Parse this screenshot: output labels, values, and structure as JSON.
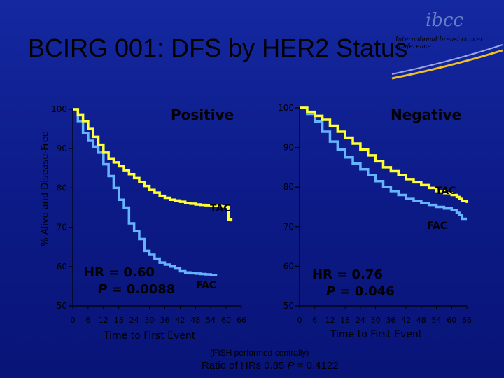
{
  "slide": {
    "title": "BCIRG 001: DFS by HER2 Status",
    "logo_text": "ibcc",
    "logo_subtitle": "International breast cancer conference",
    "y_axis_label": "% Alive and Disease-Free",
    "fish_note": "(FISH performed centrally)",
    "ratio_prefix": "Ratio of HRs 0.85 ",
    "ratio_p_label": "P",
    "ratio_suffix": " = 0.4122"
  },
  "chart_data": [
    {
      "type": "line",
      "title": "Positive",
      "xlabel": "Time to First Event",
      "ylabel": "% Alive and Disease-Free",
      "xlim": [
        0,
        66
      ],
      "ylim": [
        50,
        100
      ],
      "x_ticks": [
        "0",
        "6",
        "12",
        "18",
        "24",
        "30",
        "36",
        "42",
        "48",
        "54",
        "60",
        "66"
      ],
      "y_ticks": [
        "50",
        "60",
        "70",
        "80",
        "90",
        "100"
      ],
      "hr_line": "HR = 0.60",
      "p_label": "P",
      "p_value": " = 0.0088",
      "series": [
        {
          "name": "TAC",
          "color": "#ffff33",
          "x": [
            0,
            2,
            4,
            6,
            8,
            10,
            12,
            14,
            16,
            18,
            20,
            22,
            24,
            26,
            28,
            30,
            32,
            34,
            36,
            38,
            40,
            42,
            44,
            46,
            48,
            50,
            52,
            54,
            56,
            58,
            60,
            61,
            62
          ],
          "y": [
            100,
            98.5,
            97,
            95,
            93,
            91,
            89,
            87.5,
            86.5,
            85.5,
            84.5,
            83.5,
            82.5,
            81.5,
            80.5,
            79.5,
            78.8,
            78,
            77.5,
            77,
            76.8,
            76.5,
            76.2,
            76,
            75.8,
            75.7,
            75.6,
            75.5,
            75.4,
            75.3,
            75.2,
            72,
            71.5
          ]
        },
        {
          "name": "FAC",
          "color": "#66b3ff",
          "x": [
            0,
            2,
            4,
            6,
            8,
            10,
            12,
            14,
            16,
            18,
            20,
            22,
            24,
            26,
            28,
            30,
            32,
            34,
            36,
            38,
            40,
            42,
            44,
            46,
            48,
            50,
            52,
            54,
            56
          ],
          "y": [
            100,
            97,
            94,
            92,
            90.5,
            89,
            86,
            83,
            80,
            77,
            75,
            71,
            69,
            67,
            64,
            63,
            62,
            61,
            60.5,
            60,
            59.5,
            58.8,
            58.5,
            58.3,
            58.2,
            58.1,
            58,
            57.8,
            57.6
          ]
        }
      ]
    },
    {
      "type": "line",
      "title": "Negative",
      "xlabel": "Time to First Event",
      "xlim": [
        0,
        66
      ],
      "ylim": [
        50,
        100
      ],
      "x_ticks": [
        "0",
        "6",
        "12",
        "18",
        "24",
        "30",
        "36",
        "42",
        "48",
        "54",
        "60",
        "66"
      ],
      "y_ticks": [
        "50",
        "60",
        "70",
        "80",
        "90",
        "100"
      ],
      "hr_line": "HR = 0.76",
      "p_label": "P",
      "p_value": " = 0.046",
      "series": [
        {
          "name": "TAC",
          "color": "#ffff33",
          "x": [
            0,
            3,
            6,
            9,
            12,
            15,
            18,
            21,
            24,
            27,
            30,
            33,
            36,
            39,
            42,
            45,
            48,
            51,
            54,
            57,
            60,
            62,
            63,
            64,
            66
          ],
          "y": [
            100,
            99,
            98,
            97,
            95.5,
            94,
            92.5,
            91,
            89.5,
            88,
            86.5,
            85,
            84,
            83,
            82,
            81.2,
            80.5,
            79.8,
            79,
            78.5,
            78,
            77.5,
            77,
            76.5,
            76
          ]
        },
        {
          "name": "FAC",
          "color": "#66b3ff",
          "x": [
            0,
            3,
            6,
            9,
            12,
            15,
            18,
            21,
            24,
            27,
            30,
            33,
            36,
            39,
            42,
            45,
            48,
            51,
            54,
            57,
            60,
            62,
            63,
            64,
            66
          ],
          "y": [
            100,
            98.5,
            96.5,
            94,
            91.5,
            89.5,
            87.5,
            86,
            84.5,
            83,
            81.5,
            80,
            79,
            78,
            77,
            76.5,
            76,
            75.5,
            75,
            74.6,
            74.2,
            73.5,
            73,
            72,
            72
          ]
        }
      ]
    }
  ]
}
